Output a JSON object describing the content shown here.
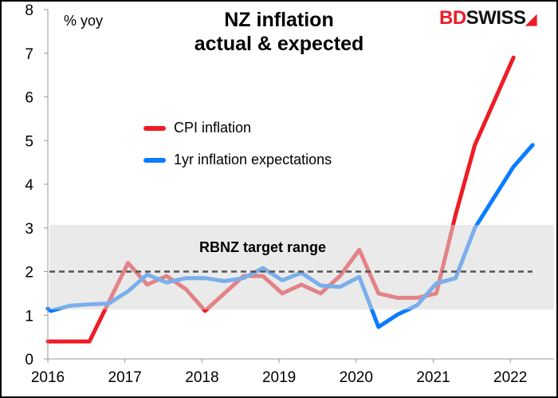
{
  "chart_data": {
    "type": "line",
    "title": "NZ inflation\nactual & expected",
    "title_lines": [
      "NZ inflation",
      "actual & expected"
    ],
    "ylabel": "% yoy",
    "xlim": [
      2016,
      2022.6
    ],
    "ylim": [
      0,
      8
    ],
    "x_ticks": [
      "2016",
      "2017",
      "2018",
      "2019",
      "2020",
      "2021",
      "2022"
    ],
    "y_ticks": [
      "0",
      "1",
      "2",
      "3",
      "4",
      "5",
      "6",
      "7",
      "8"
    ],
    "grid": false,
    "legend_placement": "upper-left (inside)",
    "band": {
      "label": "RBNZ target range",
      "range": [
        1.13,
        3.07
      ],
      "midpoint": 2,
      "color": "#d9d9d9"
    },
    "series": [
      {
        "name": "CPI inflation",
        "color": "#ee1c25",
        "x": [
          2016.0,
          2016.29,
          2016.54,
          2016.79,
          2017.04,
          2017.29,
          2017.54,
          2017.79,
          2018.04,
          2018.29,
          2018.54,
          2018.79,
          2019.04,
          2019.29,
          2019.54,
          2019.79,
          2020.04,
          2020.29,
          2020.54,
          2020.79,
          2021.04,
          2021.29,
          2021.54,
          2021.79,
          2022.04
        ],
        "values": [
          0.4,
          0.4,
          0.4,
          1.3,
          2.2,
          1.7,
          1.9,
          1.6,
          1.1,
          1.5,
          1.9,
          1.9,
          1.5,
          1.7,
          1.5,
          1.9,
          2.5,
          1.5,
          1.4,
          1.4,
          1.5,
          3.3,
          4.9,
          5.9,
          6.9
        ]
      },
      {
        "name": "1yr inflation expectations",
        "color": "#0a7cff",
        "x": [
          2016.0,
          2016.04,
          2016.29,
          2016.54,
          2016.79,
          2017.04,
          2017.29,
          2017.54,
          2017.79,
          2018.04,
          2018.29,
          2018.54,
          2018.79,
          2019.04,
          2019.29,
          2019.54,
          2019.79,
          2020.04,
          2020.29,
          2020.54,
          2020.79,
          2021.04,
          2021.29,
          2021.54,
          2021.79,
          2022.04,
          2022.29
        ],
        "values": [
          1.15,
          1.1,
          1.22,
          1.25,
          1.27,
          1.55,
          1.93,
          1.75,
          1.85,
          1.85,
          1.78,
          1.85,
          2.08,
          1.8,
          1.97,
          1.68,
          1.65,
          1.88,
          0.73,
          1.02,
          1.23,
          1.73,
          1.85,
          3.0,
          3.7,
          4.4,
          4.9
        ]
      }
    ]
  },
  "logo": {
    "text_red": "BD",
    "text_black": "SWISS"
  }
}
